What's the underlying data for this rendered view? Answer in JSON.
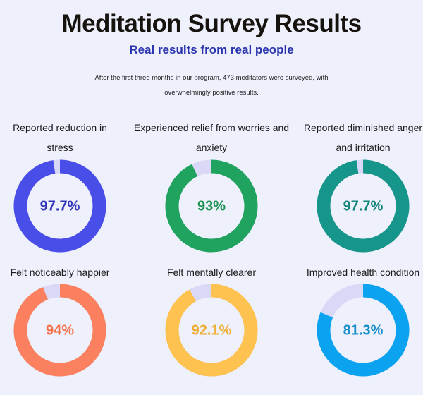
{
  "header": {
    "title": "Meditation Survey Results",
    "subtitle": "Real results from real people",
    "description": "After the first three months in our program, 473 meditators were surveyed, with overwhelmingly positive results."
  },
  "chart_data": [
    {
      "type": "donut",
      "title": "Reported reduction in stress",
      "values": [
        97.7
      ],
      "value_labels": [
        "97.7%"
      ],
      "color": "#4a4ee8",
      "label_color": "#3236b8"
    },
    {
      "type": "donut",
      "title": "Experienced relief from worries and anxiety",
      "values": [
        93
      ],
      "value_labels": [
        "93%"
      ],
      "color": "#1fa35f",
      "label_color": "#1c9353"
    },
    {
      "type": "donut",
      "title": "Reported diminished anger and irritation",
      "values": [
        97.7
      ],
      "value_labels": [
        "97.7%"
      ],
      "color": "#16958a",
      "label_color": "#12857b"
    },
    {
      "type": "donut",
      "title": "Felt noticeably happier",
      "values": [
        94
      ],
      "value_labels": [
        "94%"
      ],
      "color": "#fb8060",
      "label_color": "#f3704b"
    },
    {
      "type": "donut",
      "title": "Felt mentally clearer",
      "values": [
        92.1
      ],
      "value_labels": [
        "92.1%"
      ],
      "color": "#fdc24f",
      "label_color": "#eeae36"
    },
    {
      "type": "donut",
      "title": "Improved health condition",
      "values": [
        81.3
      ],
      "value_labels": [
        "81.3%"
      ],
      "color": "#0ba3ef",
      "label_color": "#178fcc"
    }
  ]
}
